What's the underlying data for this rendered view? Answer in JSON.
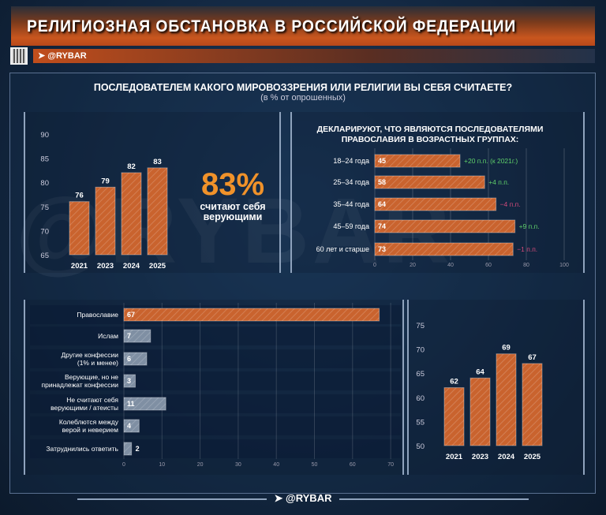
{
  "header": {
    "title": "РЕЛИГИОЗНАЯ ОБСТАНОВКА В РОССИЙСКОЙ ФЕДЕРАЦИИ",
    "channel": "@RYBAR"
  },
  "question": "ПОСЛЕДОВАТЕЛЕМ КАКОГО МИРОВОЗЗРЕНИЯ ИЛИ РЕЛИГИИ ВЫ СЕБЯ СЧИТАЕТЕ?",
  "question_sub": "(в % от опрошенных)",
  "highlight": {
    "value": "83%",
    "text1": "считают себя",
    "text2": "верующими"
  },
  "watermark": "@RYBAR",
  "footer": "@RYBAR",
  "colors": {
    "orange": "#c9632e",
    "gray": "#7f8fa3",
    "green": "#5fcf6a",
    "red": "#d04a7a"
  },
  "chart_data": [
    {
      "type": "bar",
      "categories": [
        "2021",
        "2023",
        "2024",
        "2025"
      ],
      "values": [
        76,
        79,
        82,
        83
      ],
      "ylim": [
        65,
        90
      ],
      "yticks": [
        65,
        70,
        75,
        80,
        85,
        90
      ],
      "grid": false
    },
    {
      "type": "bar",
      "orientation": "horizontal",
      "title": "ДЕКЛАРИРУЮТ, ЧТО ЯВЛЯЮТСЯ ПОСЛЕДОВАТЕЛЯМИ ПРАВОСЛАВИЯ В ВОЗРАСТНЫХ ГРУППАХ:",
      "title1": "ДЕКЛАРИРУЮТ, ЧТО ЯВЛЯЮТСЯ ПОСЛЕДОВАТЕЛЯМИ",
      "title2": "ПРАВОСЛАВИЯ В ВОЗРАСТНЫХ ГРУППАХ:",
      "categories": [
        "18–24 года",
        "25–34 года",
        "35–44 года",
        "45–59 года",
        "60 лет и старше"
      ],
      "values": [
        45,
        58,
        64,
        74,
        73
      ],
      "annotations": [
        "+20 п.п. (к 2021г.)",
        "+4 п.п.",
        "−4 п.п.",
        "+9 п.п.",
        "−1 п.п."
      ],
      "annotation_signs": [
        "up",
        "up",
        "down",
        "up",
        "down"
      ],
      "xlim": [
        0,
        100
      ],
      "xticks": [
        0,
        20,
        40,
        60,
        80,
        100
      ],
      "grid": true
    },
    {
      "type": "bar",
      "orientation": "horizontal",
      "categories": [
        [
          "Православие"
        ],
        [
          "Ислам"
        ],
        [
          "Другие конфессии",
          "(1% и менее)"
        ],
        [
          "Верующие, но не",
          "принадлежат конфессии"
        ],
        [
          "Не считают себя",
          "верующими / атеисты"
        ],
        [
          "Колеблются между",
          "верой и неверием"
        ],
        [
          "Затруднились ответить"
        ]
      ],
      "values": [
        67,
        7,
        6,
        3,
        11,
        4,
        2
      ],
      "xlim": [
        0,
        70
      ],
      "xticks": [
        0,
        10,
        20,
        30,
        40,
        50,
        60,
        70
      ],
      "grid": true
    },
    {
      "type": "bar",
      "categories": [
        "2021",
        "2023",
        "2024",
        "2025"
      ],
      "values": [
        62,
        64,
        69,
        67
      ],
      "ylim": [
        50,
        75
      ],
      "yticks": [
        50,
        55,
        60,
        65,
        70,
        75
      ],
      "grid": false
    }
  ]
}
